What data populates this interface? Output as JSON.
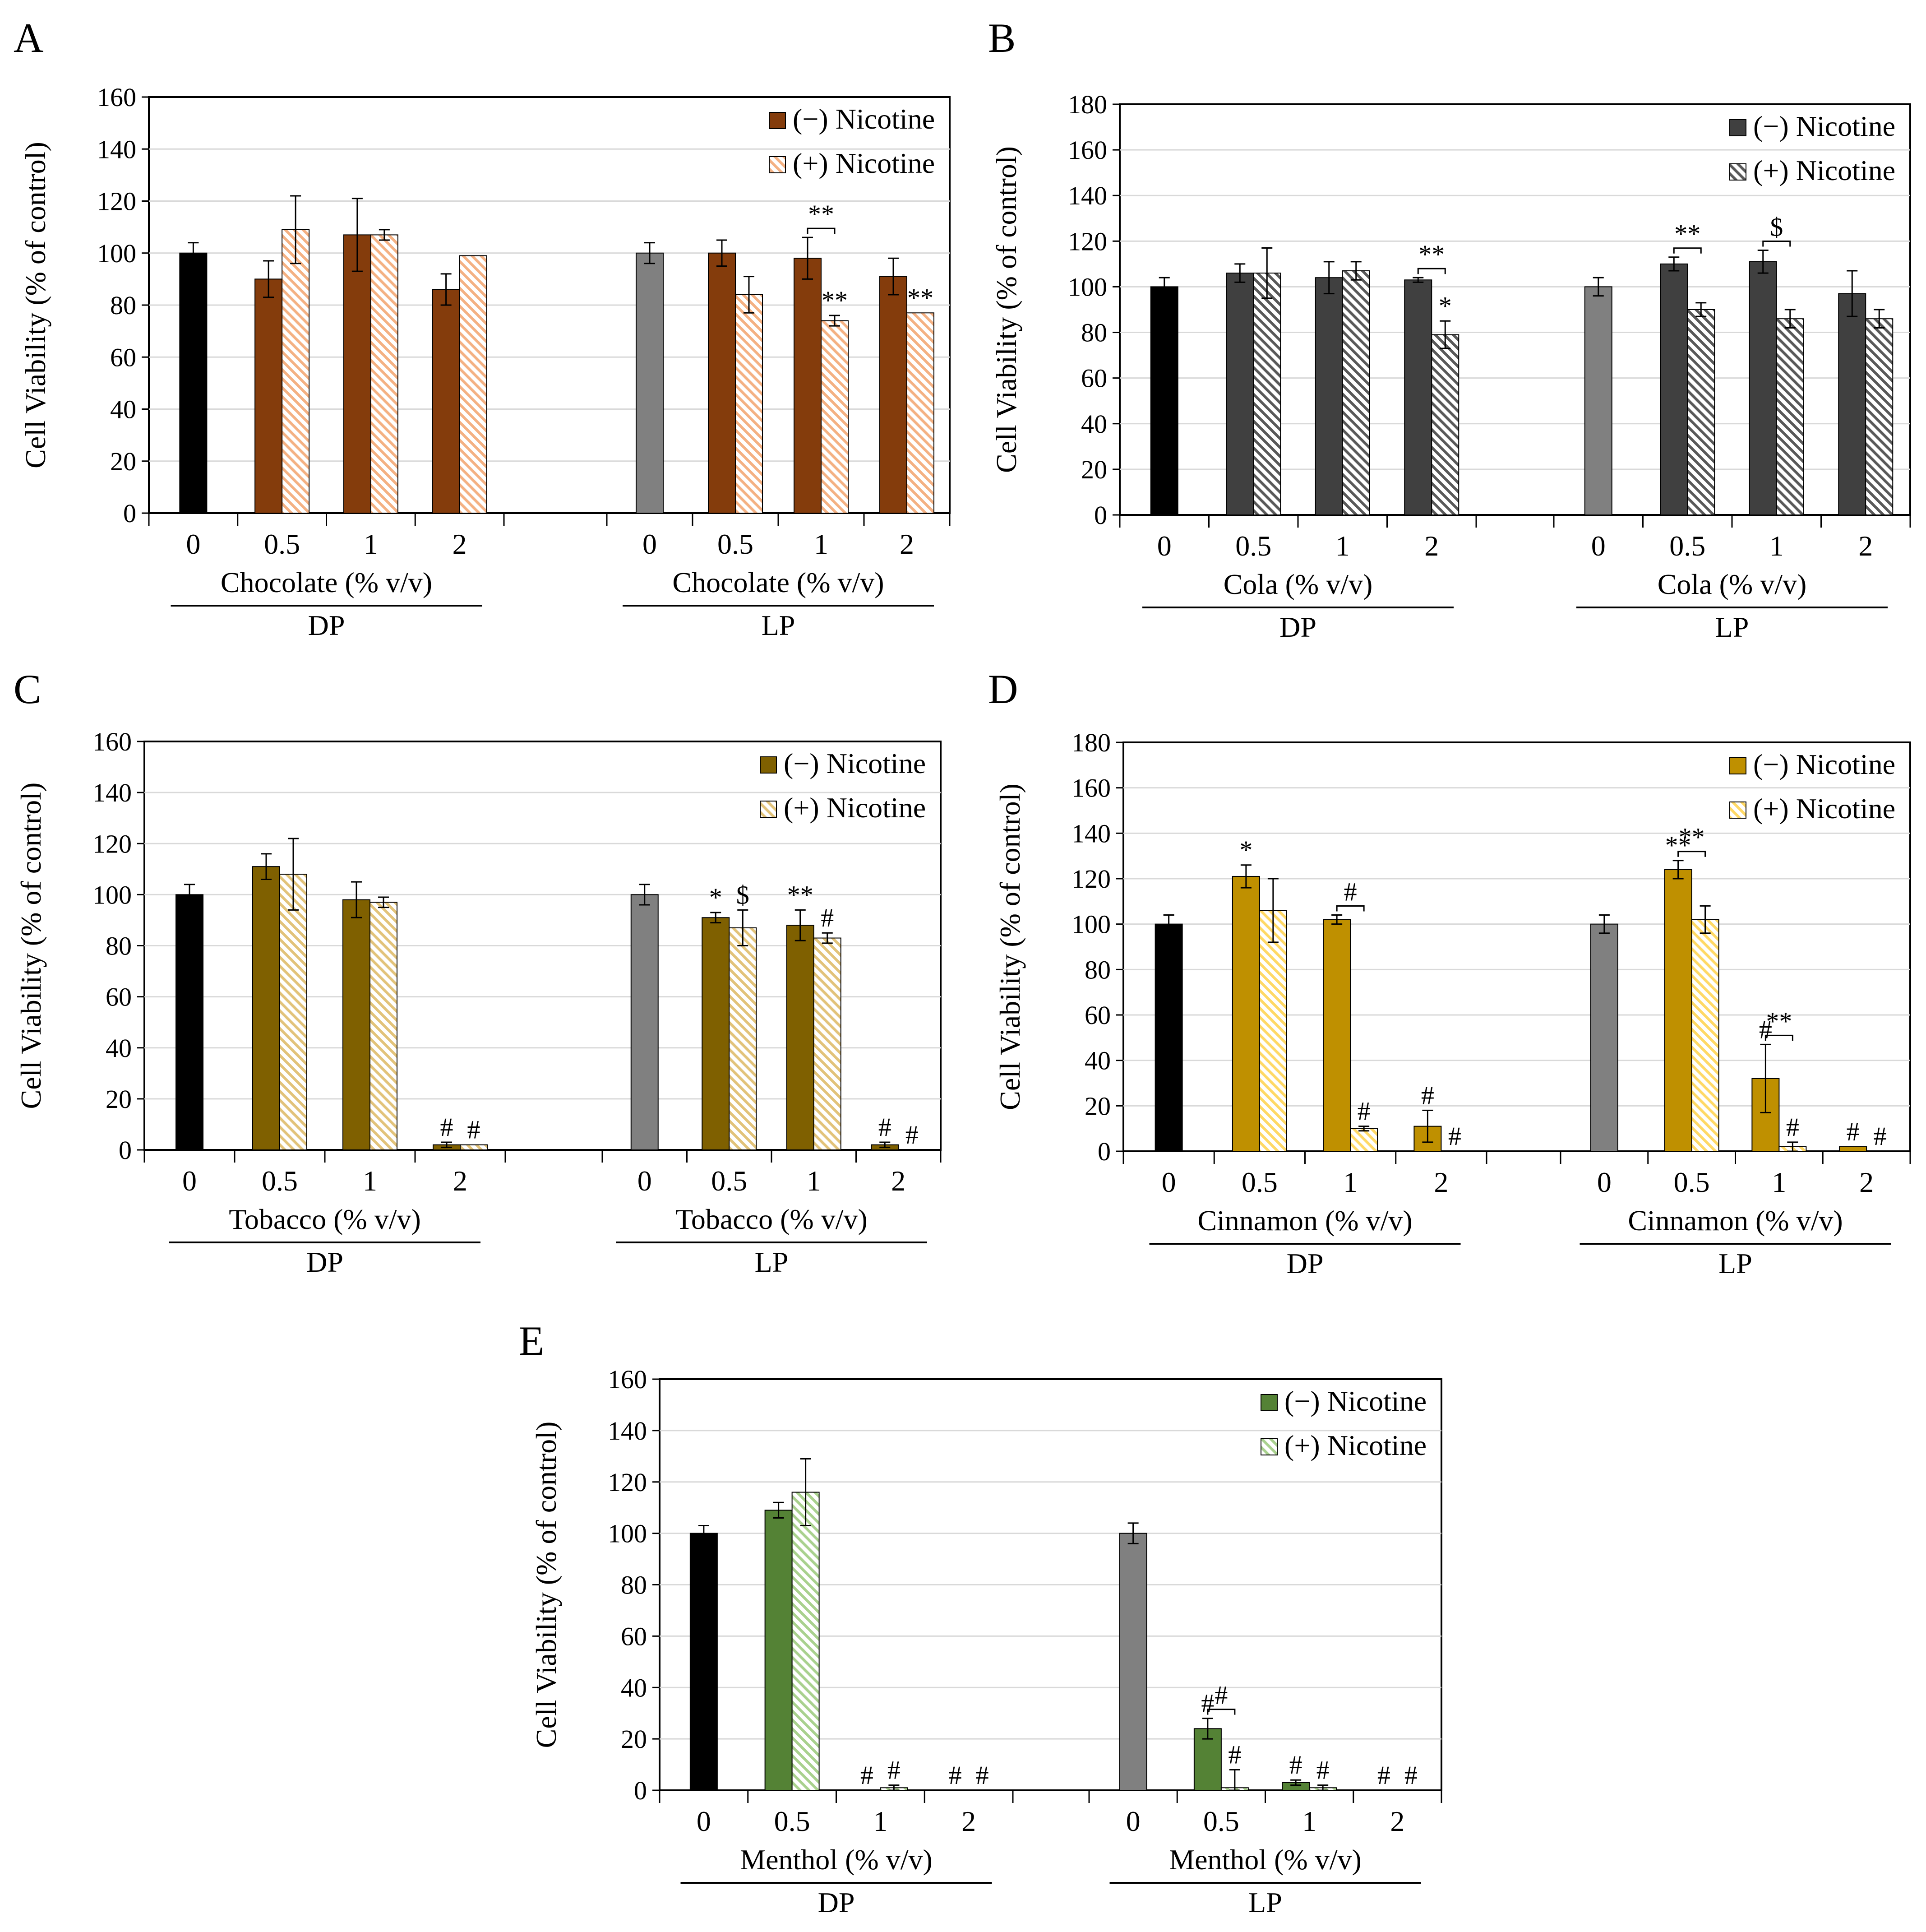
{
  "figure": {
    "panels": [
      {
        "letter": "A",
        "ylabel": "Cell Viability (% of  control)",
        "groups": [
          {
            "label": "DP",
            "xlabel": "Chocolate (% v/v)"
          },
          {
            "label": "LP",
            "xlabel": "Chocolate (% v/v)"
          }
        ],
        "legend": [
          "(−) Nicotine",
          "(+) Nicotine"
        ],
        "colors": {
          "neg": "#843C0C",
          "pos": "#F4B183",
          "dp_control": "#000000",
          "lp_control": "#808080"
        },
        "yticks": [
          "0",
          "20",
          "40",
          "60",
          "80",
          "100",
          "120",
          "140",
          "160"
        ]
      },
      {
        "letter": "B",
        "ylabel": "Cell Viability (% of  control)",
        "groups": [
          {
            "label": "DP",
            "xlabel": "Cola (% v/v)"
          },
          {
            "label": "LP",
            "xlabel": "Cola (% v/v)"
          }
        ],
        "legend": [
          "(−) Nicotine",
          "(+) Nicotine"
        ],
        "colors": {
          "neg": "#404040",
          "pos": "#595959",
          "dp_control": "#000000",
          "lp_control": "#808080"
        },
        "yticks": [
          "0",
          "20",
          "40",
          "60",
          "80",
          "100",
          "120",
          "140",
          "160",
          "180"
        ]
      },
      {
        "letter": "C",
        "ylabel": "Cell Viability (% of  control)",
        "groups": [
          {
            "label": "DP",
            "xlabel": "Tobacco  (% v/v)"
          },
          {
            "label": "LP",
            "xlabel": "Tobacco  (% v/v)"
          }
        ],
        "legend": [
          "(−) Nicotine",
          "(+) Nicotine"
        ],
        "colors": {
          "neg": "#7F6000",
          "pos": "#E2C37A",
          "dp_control": "#000000",
          "lp_control": "#808080"
        },
        "yticks": [
          "0",
          "20",
          "40",
          "60",
          "80",
          "100",
          "120",
          "140",
          "160"
        ]
      },
      {
        "letter": "D",
        "ylabel": "Cell Viability (% of  control)",
        "groups": [
          {
            "label": "DP",
            "xlabel": "Cinnamon  (% v/v)"
          },
          {
            "label": "LP",
            "xlabel": "Cinnamon  (% v/v)"
          }
        ],
        "legend": [
          "(−) Nicotine",
          "(+) Nicotine"
        ],
        "colors": {
          "neg": "#BF9000",
          "pos": "#FFD966",
          "dp_control": "#000000",
          "lp_control": "#808080"
        },
        "yticks": [
          "0",
          "20",
          "40",
          "60",
          "80",
          "100",
          "120",
          "140",
          "160",
          "180"
        ]
      },
      {
        "letter": "E",
        "ylabel": "Cell Viability (% of  control)",
        "groups": [
          {
            "label": "DP",
            "xlabel": "Menthol  (% v/v)"
          },
          {
            "label": "LP",
            "xlabel": "Menthol  (% v/v)"
          }
        ],
        "legend": [
          "(−) Nicotine",
          "(+) Nicotine"
        ],
        "colors": {
          "neg": "#548235",
          "pos": "#A9D18E",
          "dp_control": "#000000",
          "lp_control": "#808080"
        },
        "yticks": [
          "0",
          "20",
          "40",
          "60",
          "80",
          "100",
          "120",
          "140",
          "160"
        ]
      }
    ]
  },
  "chart_data": [
    {
      "panel": "A",
      "type": "bar",
      "ylim": [
        0,
        160
      ],
      "grid": true,
      "legend_position": "top-right",
      "categories": [
        "0",
        "0.5",
        "1",
        "2"
      ],
      "groups": [
        {
          "name": "DP",
          "control": 100,
          "control_err": 4,
          "neg": [
            90,
            107,
            86
          ],
          "neg_err": [
            7,
            14,
            6
          ],
          "pos": [
            109,
            107,
            99
          ],
          "pos_err": [
            13,
            2,
            0
          ],
          "neg_annot": [
            "",
            "",
            ""
          ],
          "pos_annot": [
            "",
            "",
            ""
          ],
          "bracket": [
            "",
            "",
            ""
          ]
        },
        {
          "name": "LP",
          "control": 100,
          "control_err": 4,
          "neg": [
            100,
            98,
            91
          ],
          "neg_err": [
            5,
            8,
            7
          ],
          "pos": [
            84,
            74,
            77
          ],
          "pos_err": [
            7,
            2,
            0
          ],
          "neg_annot": [
            "",
            "",
            ""
          ],
          "pos_annot": [
            "",
            "**",
            "**"
          ],
          "bracket": [
            "",
            "**",
            ""
          ]
        }
      ]
    },
    {
      "panel": "B",
      "type": "bar",
      "ylim": [
        0,
        180
      ],
      "grid": true,
      "legend_position": "top-right",
      "categories": [
        "0",
        "0.5",
        "1",
        "2"
      ],
      "groups": [
        {
          "name": "DP",
          "control": 100,
          "control_err": 4,
          "neg": [
            106,
            104,
            103
          ],
          "neg_err": [
            4,
            7,
            1
          ],
          "pos": [
            106,
            107,
            79
          ],
          "pos_err": [
            11,
            4,
            6
          ],
          "neg_annot": [
            "",
            "",
            ""
          ],
          "pos_annot": [
            "",
            "",
            "*"
          ],
          "bracket": [
            "",
            "",
            "**"
          ]
        },
        {
          "name": "LP",
          "control": 100,
          "control_err": 4,
          "neg": [
            110,
            111,
            97
          ],
          "neg_err": [
            3,
            5,
            10
          ],
          "pos": [
            90,
            86,
            86
          ],
          "pos_err": [
            3,
            4,
            4
          ],
          "neg_annot": [
            "",
            "",
            ""
          ],
          "pos_annot": [
            "",
            "",
            ""
          ],
          "bracket": [
            "**",
            "$",
            ""
          ]
        }
      ]
    },
    {
      "panel": "C",
      "type": "bar",
      "ylim": [
        0,
        160
      ],
      "grid": true,
      "legend_position": "top-right",
      "categories": [
        "0",
        "0.5",
        "1",
        "2"
      ],
      "groups": [
        {
          "name": "DP",
          "control": 100,
          "control_err": 4,
          "neg": [
            111,
            98,
            2
          ],
          "neg_err": [
            5,
            7,
            1
          ],
          "pos": [
            108,
            97,
            2
          ],
          "pos_err": [
            14,
            2,
            0
          ],
          "neg_annot": [
            "",
            "",
            "#"
          ],
          "pos_annot": [
            "",
            "",
            "#"
          ],
          "bracket": [
            "",
            "",
            ""
          ]
        },
        {
          "name": "LP",
          "control": 100,
          "control_err": 4,
          "neg": [
            91,
            88,
            2
          ],
          "neg_err": [
            2,
            6,
            1
          ],
          "pos": [
            87,
            83,
            0
          ],
          "pos_err": [
            7,
            2,
            0
          ],
          "neg_annot": [
            "*",
            "**",
            "#"
          ],
          "pos_annot": [
            "$",
            "#",
            "#"
          ],
          "bracket": [
            "",
            "",
            ""
          ]
        }
      ]
    },
    {
      "panel": "D",
      "type": "bar",
      "ylim": [
        0,
        180
      ],
      "grid": true,
      "legend_position": "top-right",
      "categories": [
        "0",
        "0.5",
        "1",
        "2"
      ],
      "groups": [
        {
          "name": "DP",
          "control": 100,
          "control_err": 4,
          "neg": [
            121,
            102,
            11
          ],
          "neg_err": [
            5,
            2,
            7
          ],
          "pos": [
            106,
            10,
            0
          ],
          "pos_err": [
            14,
            1,
            0
          ],
          "neg_annot": [
            "*",
            "",
            "#"
          ],
          "pos_annot": [
            "",
            "#",
            "#"
          ],
          "bracket": [
            "",
            "#",
            ""
          ]
        },
        {
          "name": "LP",
          "control": 100,
          "control_err": 4,
          "neg": [
            124,
            32,
            2
          ],
          "neg_err": [
            4,
            15,
            0
          ],
          "pos": [
            102,
            2,
            0
          ],
          "pos_err": [
            6,
            2,
            0
          ],
          "neg_annot": [
            "**",
            "#",
            "#"
          ],
          "pos_annot": [
            "",
            "#",
            "#"
          ],
          "bracket": [
            "**",
            "**",
            ""
          ]
        }
      ]
    },
    {
      "panel": "E",
      "type": "bar",
      "ylim": [
        0,
        160
      ],
      "grid": true,
      "legend_position": "top-right",
      "categories": [
        "0",
        "0.5",
        "1",
        "2"
      ],
      "groups": [
        {
          "name": "DP",
          "control": 100,
          "control_err": 3,
          "neg": [
            109,
            0,
            0
          ],
          "neg_err": [
            3,
            0,
            0
          ],
          "pos": [
            116,
            1,
            0
          ],
          "pos_err": [
            13,
            1,
            0
          ],
          "neg_annot": [
            "",
            "#",
            "#"
          ],
          "pos_annot": [
            "",
            "#",
            "#"
          ],
          "bracket": [
            "",
            "",
            ""
          ]
        },
        {
          "name": "LP",
          "control": 100,
          "control_err": 4,
          "neg": [
            24,
            3,
            0
          ],
          "neg_err": [
            4,
            1,
            0
          ],
          "pos": [
            1,
            1,
            0
          ],
          "pos_err": [
            7,
            1,
            0
          ],
          "neg_annot": [
            "#",
            "#",
            "#"
          ],
          "pos_annot": [
            "#",
            "#",
            "#"
          ],
          "bracket": [
            "#",
            "",
            ""
          ]
        }
      ]
    }
  ]
}
